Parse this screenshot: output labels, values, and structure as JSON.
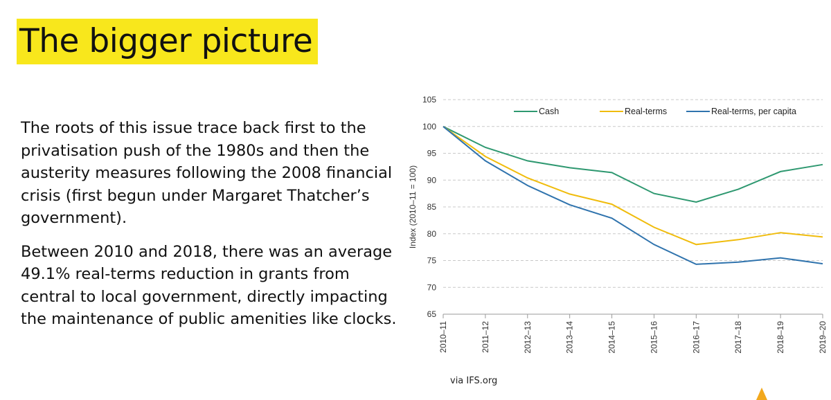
{
  "slide": {
    "title": "The bigger picture",
    "paragraphs": [
      "The roots of this issue trace back first to the privatisation push of the 1980s and then the austerity measures following the 2008 financial crisis (first begun under Margaret Thatcher’s government).",
      "Between 2010 and 2018, there was an average 49.1% real-terms reduction in grants from central to local government, directly impacting the maintenance of public amenities like clocks."
    ],
    "source": "via IFS.org"
  },
  "colors": {
    "cash": "#2e9870",
    "real_terms": "#f0bc0c",
    "per_capita": "#2f73ad",
    "highlight": "#f8e71c"
  },
  "chart_data": {
    "type": "line",
    "title": "",
    "xlabel": "",
    "ylabel": "Index (2010–11 = 100)",
    "ylim": [
      65,
      105
    ],
    "yticks": [
      65,
      70,
      75,
      80,
      85,
      90,
      95,
      100,
      105
    ],
    "grid": true,
    "legend_position": "top",
    "categories": [
      "2010–11",
      "2011–12",
      "2012–13",
      "2013–14",
      "2014–15",
      "2015–16",
      "2016–17",
      "2017–18",
      "2018–19",
      "2019–20"
    ],
    "series": [
      {
        "name": "Cash",
        "color_key": "cash",
        "values": [
          100,
          96.1,
          93.6,
          92.3,
          91.4,
          87.5,
          85.9,
          88.3,
          91.6,
          92.9
        ]
      },
      {
        "name": "Real-terms",
        "color_key": "real_terms",
        "values": [
          100,
          94.4,
          90.4,
          87.4,
          85.5,
          81.2,
          78.0,
          78.9,
          80.2,
          79.4
        ]
      },
      {
        "name": "Real-terms, per capita",
        "color_key": "per_capita",
        "values": [
          100,
          93.6,
          89.0,
          85.4,
          82.9,
          78.0,
          74.3,
          74.7,
          75.5,
          74.4
        ]
      }
    ]
  }
}
